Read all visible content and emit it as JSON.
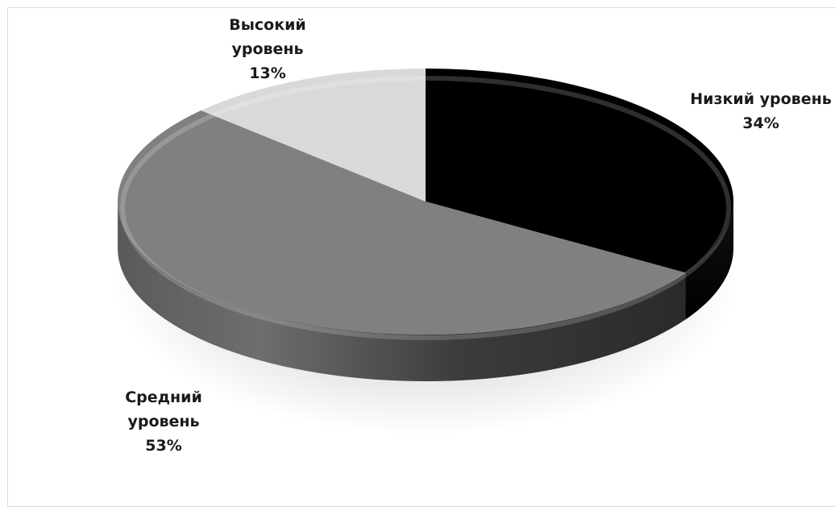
{
  "chart_data": {
    "type": "pie",
    "title": "",
    "style": "3d",
    "slices": [
      {
        "label_lines": [
          "Низкий уровень"
        ],
        "value": 34,
        "percent_label": "34%",
        "color": "#000000"
      },
      {
        "label_lines": [
          "Средний",
          "уровень"
        ],
        "value": 53,
        "percent_label": "53%",
        "color": "#808080"
      },
      {
        "label_lines": [
          "Высокий",
          "уровень"
        ],
        "value": 13,
        "percent_label": "13%",
        "color": "#d9d9d9"
      }
    ]
  }
}
